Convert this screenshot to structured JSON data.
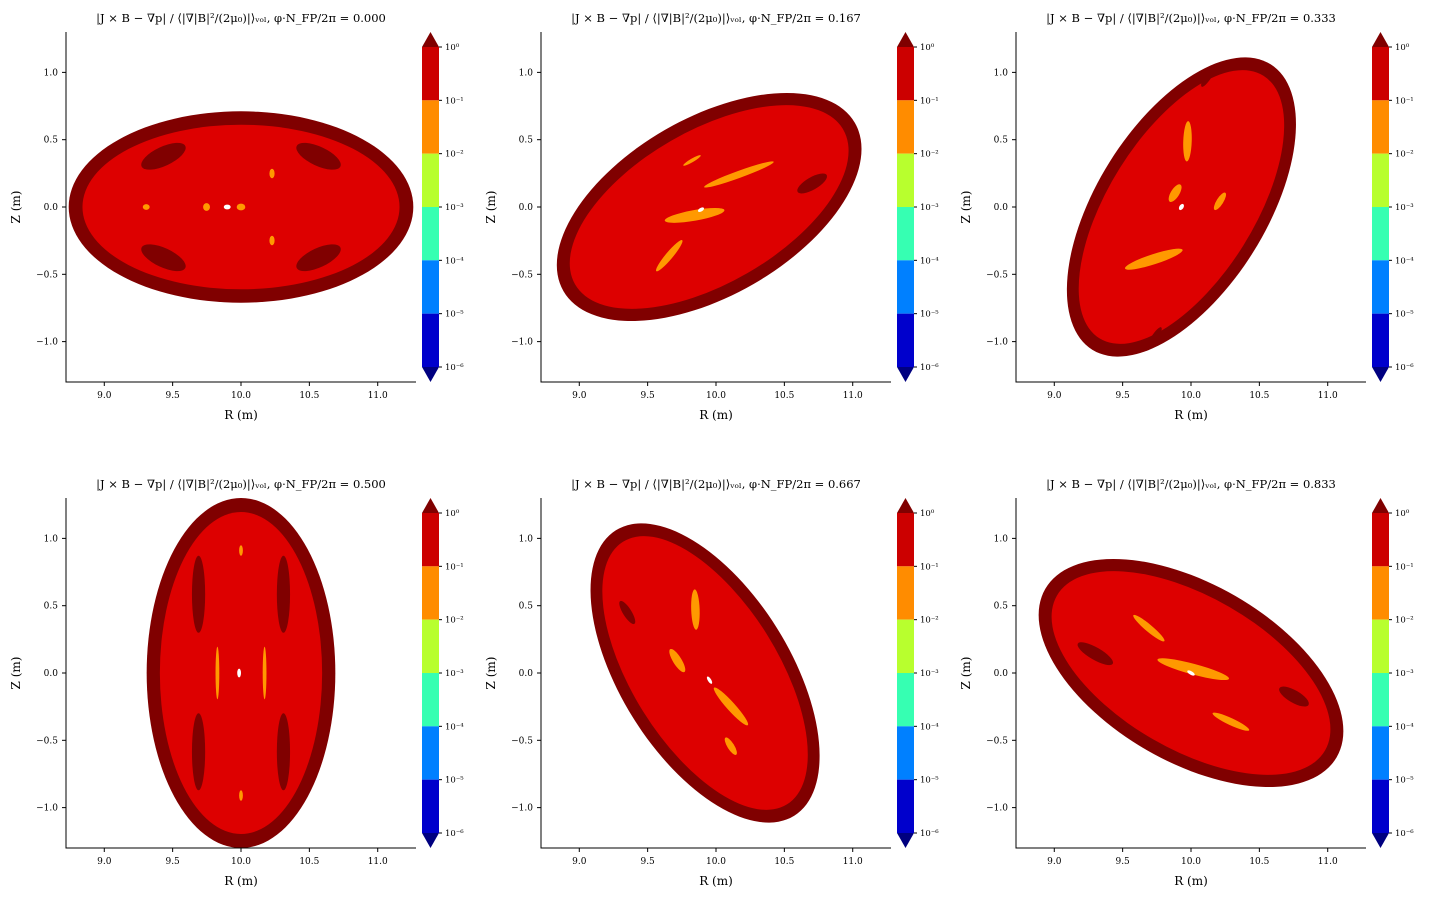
{
  "figure": {
    "colorbar": {
      "levels": [
        "10⁰",
        "10⁻¹",
        "10⁻²",
        "10⁻³",
        "10⁻⁴",
        "10⁻⁵",
        "10⁻⁶"
      ],
      "band_colors": [
        "#cc0000",
        "#ff8c00",
        "#b8ff2e",
        "#36ffb2",
        "#0080ff",
        "#0000cc"
      ],
      "over_color": "#800000",
      "under_color": "#000080"
    },
    "fill_colors": {
      "outer": "#800000",
      "main": "#dd0000",
      "mid": "#ff9900",
      "hole": "#ffffff"
    }
  },
  "chart_data": [
    {
      "type": "heatmap",
      "title": "|J × B − ∇p| / ⟨|∇|B|²/(2μ₀)|⟩ᵥₒₗ, φ·N_FP/2π = 0.000",
      "xlabel": "R (m)",
      "ylabel": "Z (m)",
      "xlim": [
        8.72,
        11.28
      ],
      "ylim": [
        -1.3,
        1.3
      ],
      "xticks": [
        "9.0",
        "9.5",
        "10.0",
        "10.5",
        "11.0"
      ],
      "yticks": [
        "−1.0",
        "−0.5",
        "0.0",
        "0.5",
        "1.0"
      ],
      "phi_over_period": 0.0,
      "boundary": {
        "R0": 10.0,
        "a": 1.28,
        "b": 0.7,
        "tilt_deg": 0
      }
    },
    {
      "type": "heatmap",
      "title": "|J × B − ∇p| / ⟨|∇|B|²/(2μ₀)|⟩ᵥₒₗ, φ·N_FP/2π = 0.167",
      "xlabel": "R (m)",
      "ylabel": "Z (m)",
      "xlim": [
        8.72,
        11.28
      ],
      "ylim": [
        -1.3,
        1.3
      ],
      "xticks": [
        "9.0",
        "9.5",
        "10.0",
        "10.5",
        "11.0"
      ],
      "yticks": [
        "−1.0",
        "−0.5",
        "0.0",
        "0.5",
        "1.0"
      ],
      "phi_over_period": 0.167,
      "boundary": {
        "R0": 9.95,
        "a": 1.25,
        "b": 0.65,
        "tilt_deg": 30
      }
    },
    {
      "type": "heatmap",
      "title": "|J × B − ∇p| / ⟨|∇|B|²/(2μ₀)|⟩ᵥₒₗ, φ·N_FP/2π = 0.333",
      "xlabel": "R (m)",
      "ylabel": "Z (m)",
      "xlim": [
        8.72,
        11.28
      ],
      "ylim": [
        -1.3,
        1.3
      ],
      "xticks": [
        "9.0",
        "9.5",
        "10.0",
        "10.5",
        "11.0"
      ],
      "yticks": [
        "−1.0",
        "−0.5",
        "0.0",
        "0.5",
        "1.0"
      ],
      "phi_over_period": 0.333,
      "boundary": {
        "R0": 9.93,
        "a": 1.25,
        "b": 0.62,
        "tilt_deg": 58
      }
    },
    {
      "type": "heatmap",
      "title": "|J × B − ∇p| / ⟨|∇|B|²/(2μ₀)|⟩ᵥₒₗ, φ·N_FP/2π = 0.500",
      "xlabel": "R (m)",
      "ylabel": "Z (m)",
      "xlim": [
        8.72,
        11.28
      ],
      "ylim": [
        -1.3,
        1.3
      ],
      "xticks": [
        "9.0",
        "9.5",
        "10.0",
        "10.5",
        "11.0"
      ],
      "yticks": [
        "−1.0",
        "−0.5",
        "0.0",
        "0.5",
        "1.0"
      ],
      "phi_over_period": 0.5,
      "boundary": {
        "R0": 10.0,
        "a": 1.3,
        "b": 0.69,
        "tilt_deg": 90
      }
    },
    {
      "type": "heatmap",
      "title": "|J × B − ∇p| / ⟨|∇|B|²/(2μ₀)|⟩ᵥₒₗ, φ·N_FP/2π = 0.667",
      "xlabel": "R (m)",
      "ylabel": "Z (m)",
      "xlim": [
        8.72,
        11.28
      ],
      "ylim": [
        -1.3,
        1.3
      ],
      "xticks": [
        "9.0",
        "9.5",
        "10.0",
        "10.5",
        "11.0"
      ],
      "yticks": [
        "−1.0",
        "−0.5",
        "0.0",
        "0.5",
        "1.0"
      ],
      "phi_over_period": 0.667,
      "boundary": {
        "R0": 9.92,
        "a": 1.25,
        "b": 0.62,
        "tilt_deg": -58
      }
    },
    {
      "type": "heatmap",
      "title": "|J × B − ∇p| / ⟨|∇|B|²/(2μ₀)|⟩ᵥₒₗ, φ·N_FP/2π = 0.833",
      "xlabel": "R (m)",
      "ylabel": "Z (m)",
      "xlim": [
        8.72,
        11.28
      ],
      "ylim": [
        -1.3,
        1.3
      ],
      "xticks": [
        "9.0",
        "9.5",
        "10.0",
        "10.5",
        "11.0"
      ],
      "yticks": [
        "−1.0",
        "−0.5",
        "0.0",
        "0.5",
        "1.0"
      ],
      "phi_over_period": 0.833,
      "boundary": {
        "R0": 10.0,
        "a": 1.25,
        "b": 0.65,
        "tilt_deg": -30
      }
    }
  ]
}
